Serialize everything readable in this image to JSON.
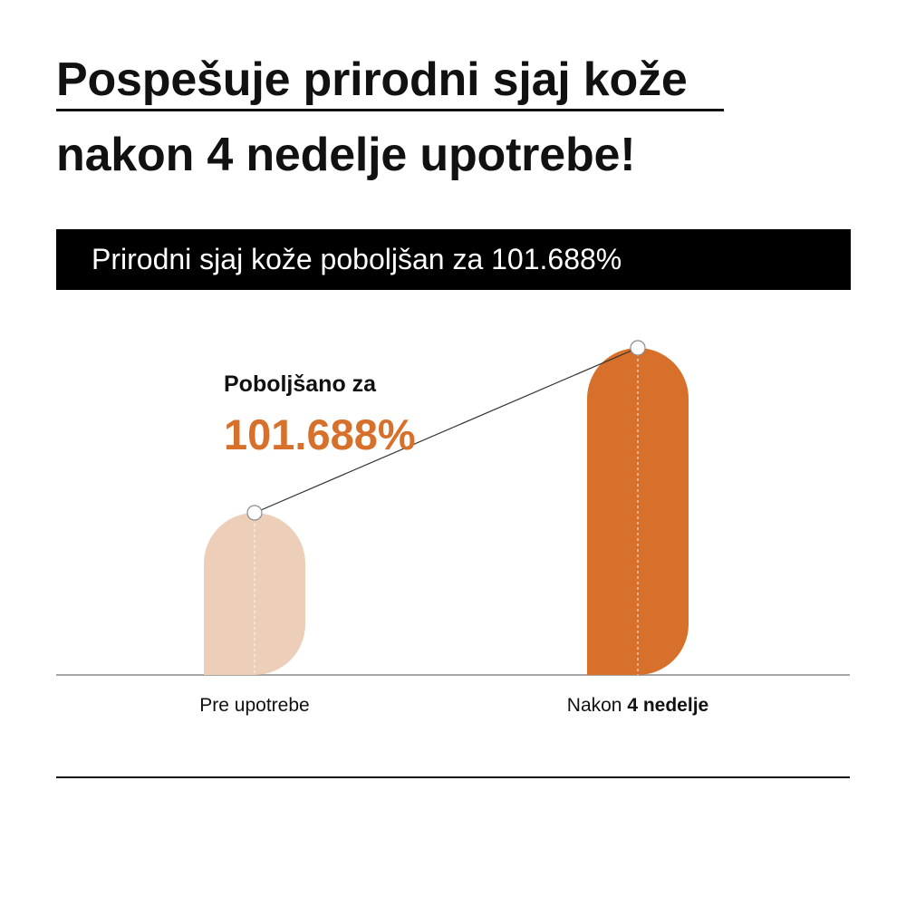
{
  "headline": {
    "line1": "Pospešuje prirodni sjaj kože",
    "line2": "nakon 4 nedelje upotrebe!"
  },
  "banner": {
    "text": "Prirodni sjaj kože poboljšan za 101.688%"
  },
  "annotation": {
    "label": "Poboljšano za",
    "value": "101.688%"
  },
  "colors": {
    "before_bar": "#EDCFB9",
    "after_bar": "#D6702A",
    "annotation_value": "#D6702A",
    "banner_bg": "#000000"
  },
  "chart_data": {
    "type": "bar",
    "title": "",
    "categories": [
      "Pre upotrebe",
      "Nakon 4 nedelje"
    ],
    "category_labels": [
      {
        "prefix": "Pre upotrebe",
        "bold": ""
      },
      {
        "prefix": "Nakon ",
        "bold": "4 nedelje"
      }
    ],
    "values": [
      100,
      201.688
    ],
    "ylim": [
      0,
      201.688
    ],
    "grid": false,
    "legend": "none",
    "connector_line": true
  }
}
